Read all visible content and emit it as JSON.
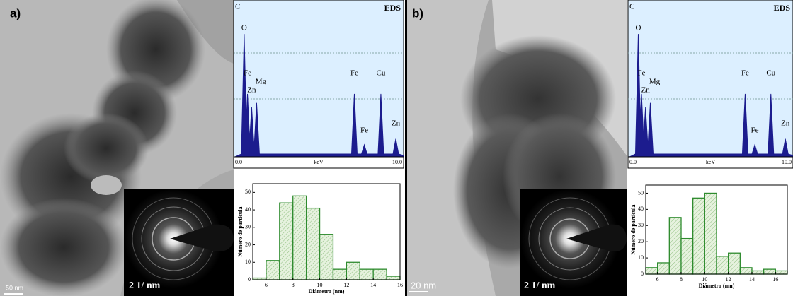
{
  "panels": [
    {
      "label": "a)",
      "scale_bar": "50 nm",
      "diffraction_label": "2 1/ nm",
      "eds": {
        "title": "EDS",
        "top_label": "C",
        "peaks": [
          "O",
          "Fe",
          "Zn",
          "Mg",
          "Fe",
          "Fe",
          "Cu",
          "Zn"
        ],
        "x_start": "0.0",
        "x_label": "keV",
        "x_end": "10.0"
      }
    },
    {
      "label": "b)",
      "scale_bar": "20 nm",
      "diffraction_label": "2 1/ nm",
      "eds": {
        "title": "EDS",
        "top_label": "C",
        "peaks": [
          "O",
          "Fe",
          "Zn",
          "Mg",
          "Fe",
          "Fe",
          "Cu",
          "Zn"
        ],
        "x_start": "0.0",
        "x_label": "keV",
        "x_end": "10.0"
      }
    }
  ],
  "chart_data": [
    {
      "type": "histogram",
      "xlabel": "Diámetro (nm)",
      "ylabel": "Número de partícula",
      "color": "#2e8b2e",
      "bins": [
        5,
        6,
        7,
        8,
        9,
        10,
        11,
        12,
        13,
        14,
        15,
        16
      ],
      "values": [
        1,
        11,
        44,
        48,
        41,
        26,
        6,
        10,
        6,
        6,
        2
      ],
      "xlim": [
        5,
        16
      ],
      "ylim": [
        0,
        55
      ],
      "xticks": [
        6,
        8,
        10,
        12,
        14,
        16
      ],
      "yticks": [
        0,
        10,
        20,
        30,
        40,
        50
      ]
    },
    {
      "type": "histogram",
      "xlabel": "Diámetro (nm)",
      "ylabel": "Número de partícula",
      "color": "#2e8b2e",
      "bins": [
        5,
        6,
        7,
        8,
        9,
        10,
        11,
        12,
        13,
        14,
        15,
        16,
        17
      ],
      "values": [
        4,
        7,
        35,
        22,
        47,
        50,
        11,
        13,
        4,
        2,
        3,
        2
      ],
      "xlim": [
        5,
        17
      ],
      "ylim": [
        0,
        55
      ],
      "xticks": [
        6,
        8,
        10,
        12,
        14,
        16
      ],
      "yticks": [
        0,
        10,
        20,
        30,
        40,
        50
      ]
    }
  ]
}
